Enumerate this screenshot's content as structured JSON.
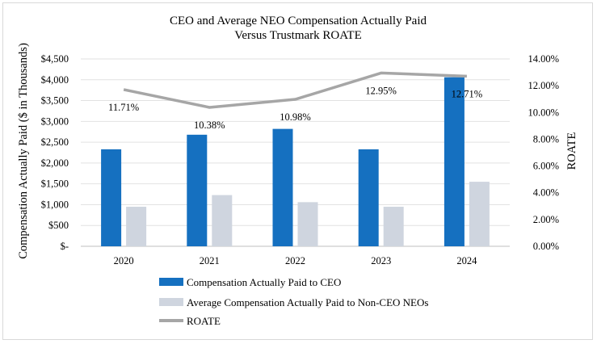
{
  "chart_data": {
    "type": "bar",
    "title": [
      "CEO and Average NEO Compensation Actually Paid",
      "Versus Trustmark ROATE"
    ],
    "categories": [
      "2020",
      "2021",
      "2022",
      "2023",
      "2024"
    ],
    "series": [
      {
        "name": "Compensation Actually Paid to CEO",
        "type": "bar",
        "axis": "left",
        "color": "#1570c0",
        "values": [
          2330,
          2680,
          2820,
          2330,
          4060
        ]
      },
      {
        "name": "Average Compensation Actually Paid to Non-CEO NEOs",
        "type": "bar",
        "axis": "left",
        "color": "#cfd5df",
        "values": [
          950,
          1230,
          1060,
          950,
          1550
        ]
      },
      {
        "name": "ROATE",
        "type": "line",
        "axis": "right",
        "color": "#a6a6a6",
        "values": [
          11.71,
          10.38,
          10.98,
          12.95,
          12.71
        ],
        "labels": [
          "11.71%",
          "10.38%",
          "10.98%",
          "12.95%",
          "12.71%"
        ]
      }
    ],
    "ylabel": "Compensation Actually Paid ($ in Thousands)",
    "y2label": "ROATE",
    "ylim": [
      0,
      4500
    ],
    "y2lim": [
      0,
      14
    ],
    "yticks": [
      "$-",
      "$500",
      "$1,000",
      "$1,500",
      "$2,000",
      "$2,500",
      "$3,000",
      "$3,500",
      "$4,000",
      "$4,500"
    ],
    "y2ticks": [
      "0.00%",
      "2.00%",
      "4.00%",
      "6.00%",
      "8.00%",
      "10.00%",
      "12.00%",
      "14.00%"
    ],
    "grid": true,
    "legend": "bottom"
  }
}
